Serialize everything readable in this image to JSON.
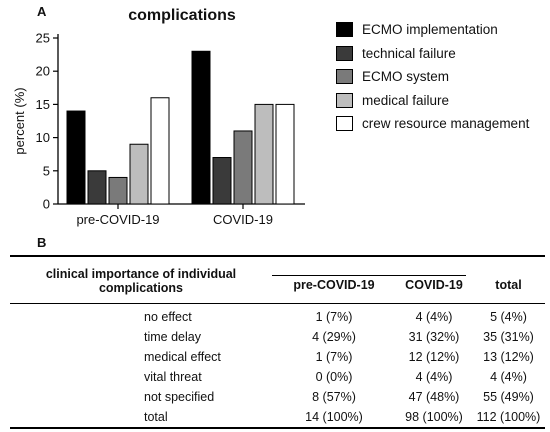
{
  "panel_a": {
    "label": "A"
  },
  "panel_b": {
    "label": "B"
  },
  "chart_data": {
    "type": "bar",
    "title": "complications",
    "xlabel": "",
    "ylabel": "percent (%)",
    "ylim": [
      0,
      25
    ],
    "yticks": [
      0,
      5,
      10,
      15,
      20,
      25
    ],
    "categories": [
      "pre-COVID-19",
      "COVID-19"
    ],
    "grid": false,
    "legend_position": "right",
    "series": [
      {
        "name": "ECMO implementation",
        "color": "#000000",
        "values": [
          14,
          23
        ]
      },
      {
        "name": "technical failure",
        "color": "#3a3a3a",
        "values": [
          5,
          7
        ]
      },
      {
        "name": "ECMO system",
        "color": "#7a7a7a",
        "values": [
          4,
          11
        ]
      },
      {
        "name": "medical failure",
        "color": "#bdbdbd",
        "values": [
          9,
          15
        ]
      },
      {
        "name": "crew resource management",
        "color": "#ffffff",
        "values": [
          16,
          15
        ]
      }
    ]
  },
  "table": {
    "header_left_line1": "clinical importance of individual",
    "header_left_line2": "complications",
    "columns": [
      "pre-COVID-19",
      "COVID-19",
      "total"
    ],
    "rows": [
      {
        "label": "no effect",
        "pre": "1 (7%)",
        "covid": "4 (4%)",
        "total": "5 (4%)"
      },
      {
        "label": "time delay",
        "pre": "4 (29%)",
        "covid": "31 (32%)",
        "total": "35 (31%)"
      },
      {
        "label": "medical effect",
        "pre": "1 (7%)",
        "covid": "12 (12%)",
        "total": "13 (12%)"
      },
      {
        "label": "vital threat",
        "pre": "0 (0%)",
        "covid": "4 (4%)",
        "total": "4 (4%)"
      },
      {
        "label": "not specified",
        "pre": "8 (57%)",
        "covid": "47 (48%)",
        "total": "55 (49%)"
      },
      {
        "label": "total",
        "pre": "14 (100%)",
        "covid": "98 (100%)",
        "total": "112 (100%)"
      }
    ]
  }
}
